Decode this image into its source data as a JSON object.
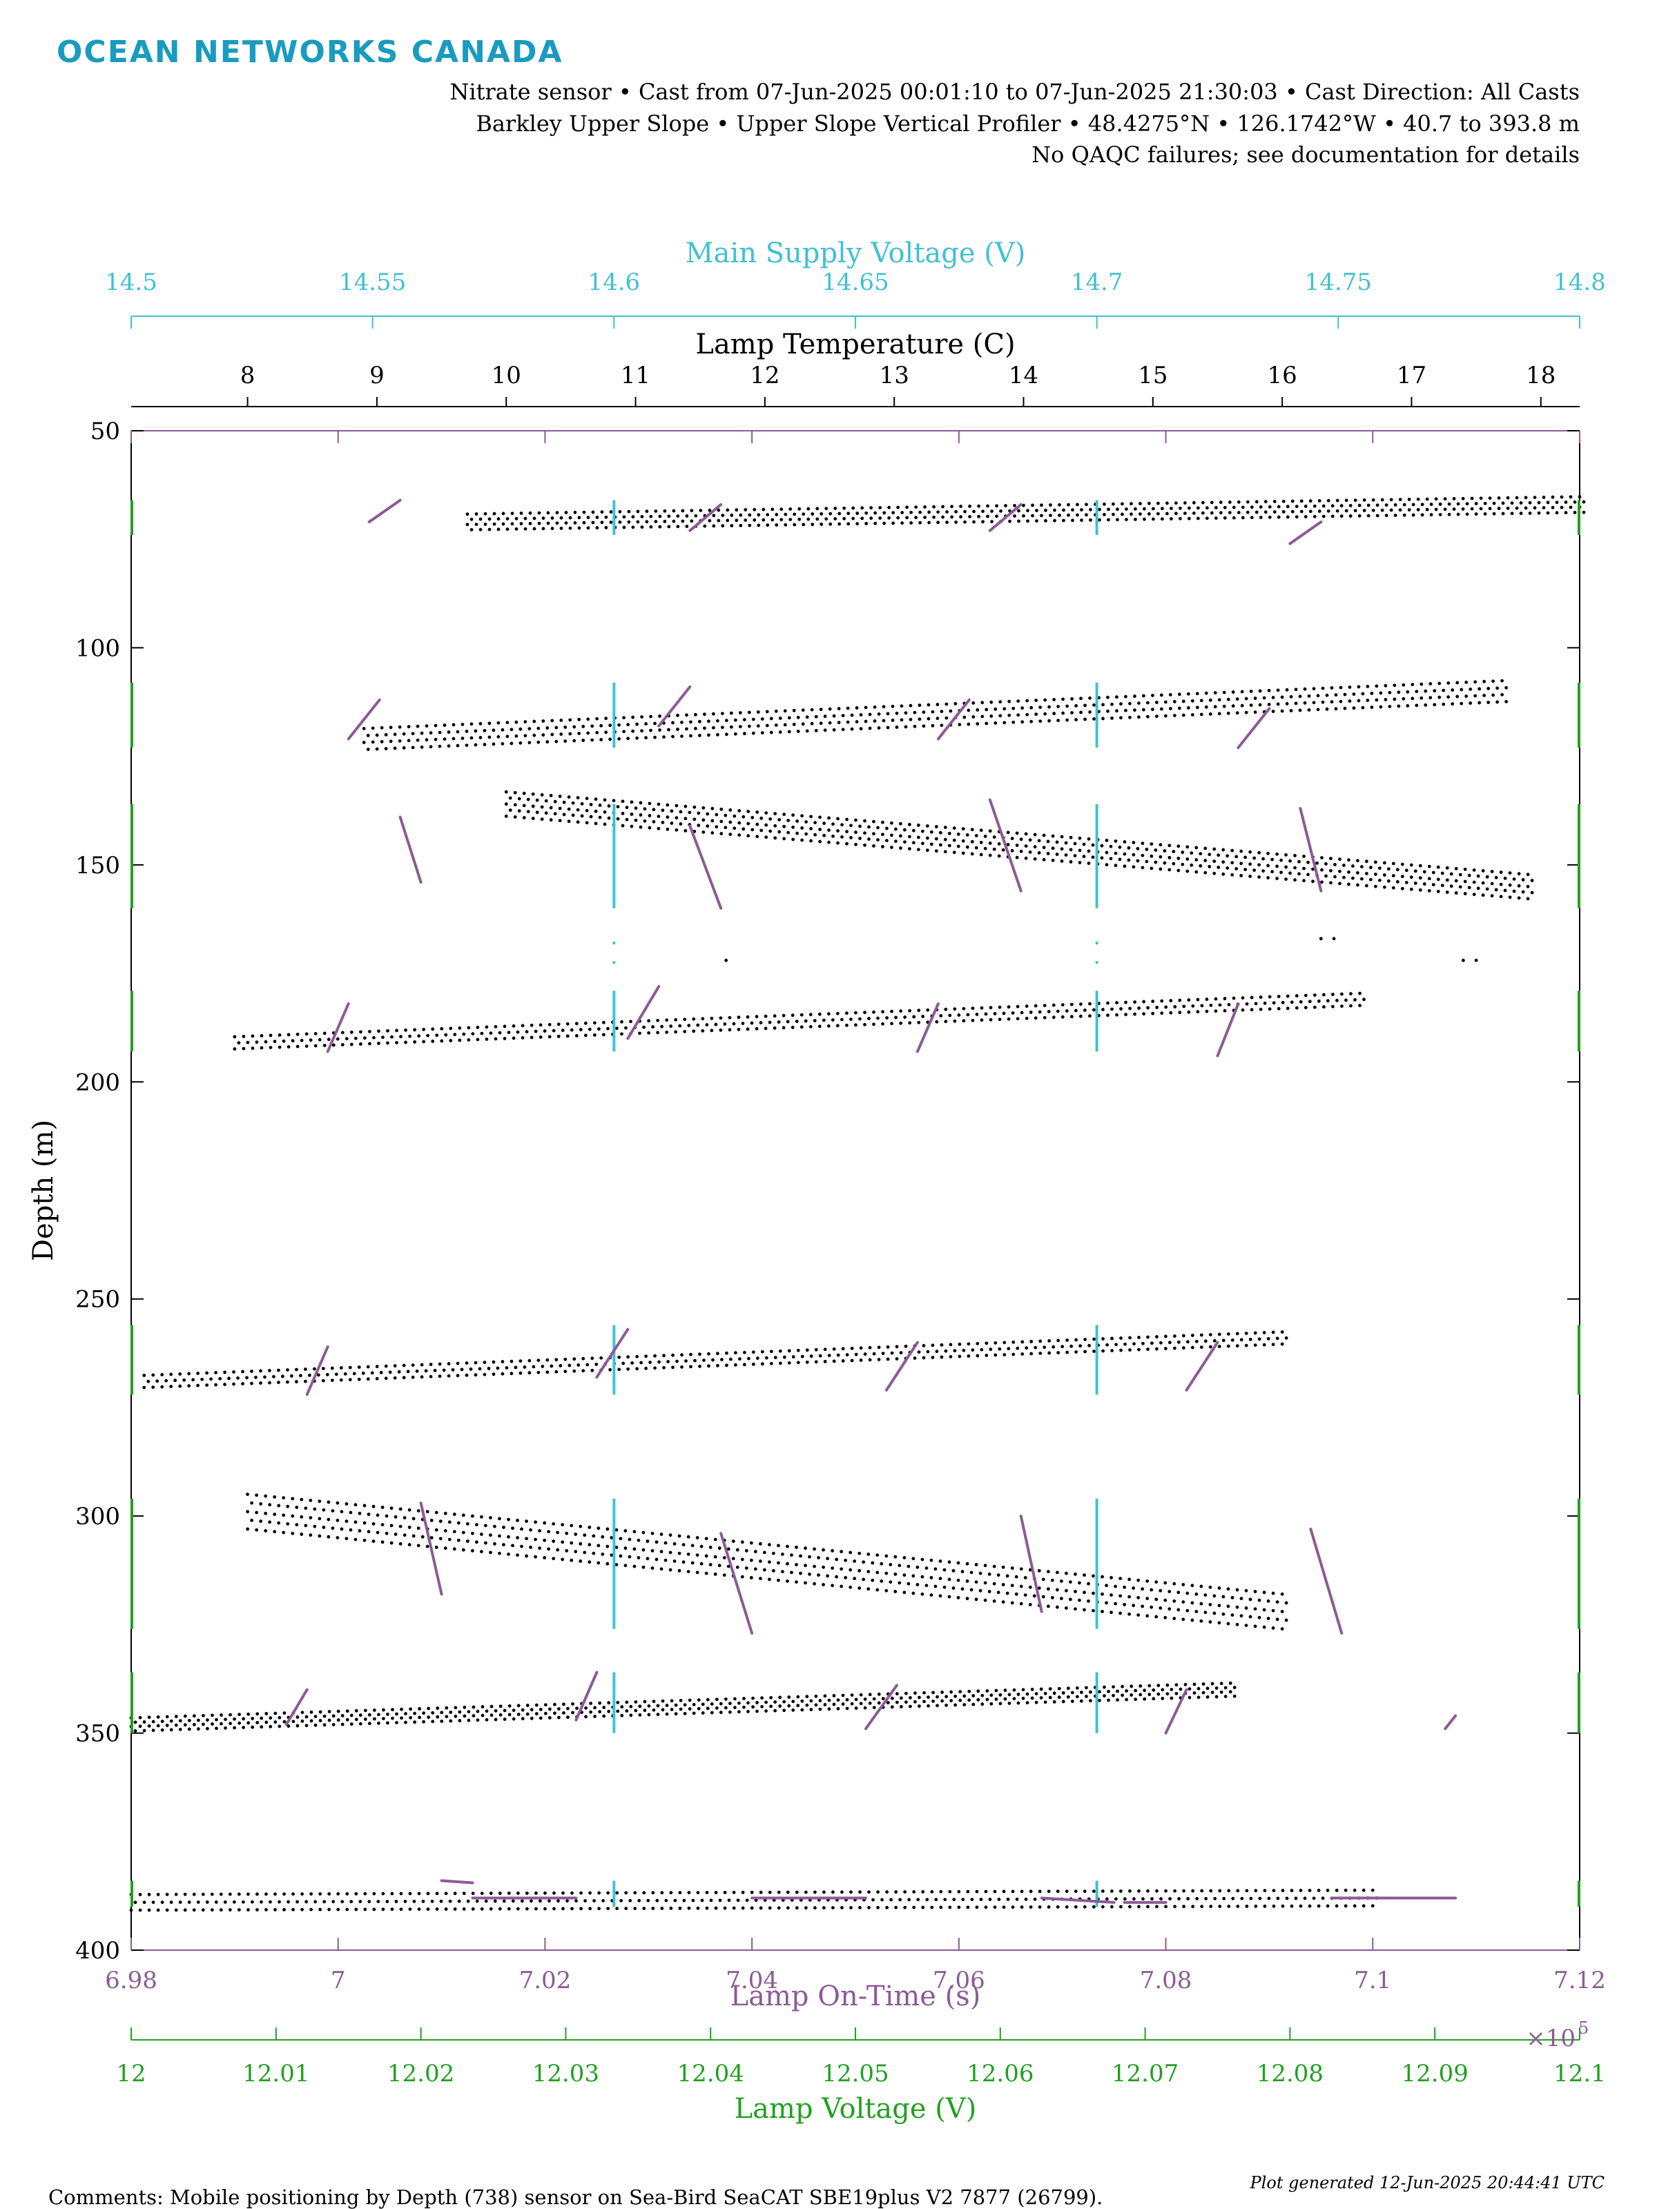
{
  "header": {
    "logo": "OCEAN NETWORKS CANADA",
    "line1": "Nitrate sensor • Cast from 07-Jun-2025 00:01:10 to 07-Jun-2025 21:30:03 • Cast Direction: All Casts",
    "line2": "Barkley Upper Slope • Upper Slope Vertical Profiler • 48.4275°N • 126.1742°W • 40.7 to 393.8 m",
    "line3": "No QAQC failures; see documentation for details"
  },
  "footer": {
    "comments": "Comments: Mobile positioning by Depth (738) sensor on Sea-Bird SeaCAT SBE19plus V2 7877 (26799).",
    "generated": "Plot generated 12-Jun-2025 20:44:41 UTC"
  },
  "colors": {
    "voltage_supply": "#3fc1d3",
    "lamp_time": "#8c5a96",
    "lamp_voltage": "#21a021",
    "temperature": "#000000"
  },
  "chart_data": {
    "type": "scatter",
    "y_axis": {
      "label": "Depth (m)",
      "range": [
        50,
        400
      ],
      "reversed": true,
      "ticks": [
        50,
        100,
        150,
        200,
        250,
        300,
        350,
        400
      ],
      "tick_labels": [
        "50",
        "100",
        "150",
        "200",
        "250",
        "300",
        "350",
        "400"
      ]
    },
    "x_axes": [
      {
        "id": "supply",
        "label": "Main Supply Voltage (V)",
        "position": "top-outer",
        "color": "#3fc1d3",
        "range": [
          14.5,
          14.8
        ],
        "ticks": [
          14.5,
          14.55,
          14.6,
          14.65,
          14.7,
          14.75,
          14.8
        ],
        "tick_labels": [
          "14.5",
          "14.55",
          "14.6",
          "14.65",
          "14.7",
          "14.75",
          "14.8"
        ]
      },
      {
        "id": "temp",
        "label": "Lamp Temperature (C)",
        "position": "top-inner",
        "color": "#000000",
        "range": [
          7.1,
          18.3
        ],
        "ticks": [
          8,
          9,
          10,
          11,
          12,
          13,
          14,
          15,
          16,
          17,
          18
        ],
        "tick_labels": [
          "8",
          "9",
          "10",
          "11",
          "12",
          "13",
          "14",
          "15",
          "16",
          "17",
          "18"
        ]
      },
      {
        "id": "ontime",
        "label": "Lamp On-Time (s)",
        "position": "bottom-inner",
        "color": "#8c5a96",
        "range": [
          6.98,
          7.12
        ],
        "multiplier": "×10",
        "multiplier_exp": "5",
        "ticks": [
          6.98,
          7.0,
          7.02,
          7.04,
          7.06,
          7.08,
          7.1,
          7.12
        ],
        "tick_labels": [
          "6.98",
          "7",
          "7.02",
          "7.04",
          "7.06",
          "7.08",
          "7.1",
          "7.12"
        ]
      },
      {
        "id": "lampv",
        "label": "Lamp Voltage (V)",
        "position": "bottom-outer",
        "color": "#21a021",
        "range": [
          12.0,
          12.1
        ],
        "ticks": [
          12.0,
          12.01,
          12.02,
          12.03,
          12.04,
          12.05,
          12.06,
          12.07,
          12.08,
          12.09,
          12.1
        ],
        "tick_labels": [
          "12",
          "12.01",
          "12.02",
          "12.03",
          "12.04",
          "12.05",
          "12.06",
          "12.07",
          "12.08",
          "12.09",
          "12.1"
        ]
      }
    ],
    "series": [
      {
        "id": "temperature",
        "axis": "temp",
        "style": "dots",
        "color": "#000000",
        "segments": [
          {
            "from": [
              9.7,
              71
            ],
            "to": [
              18.3,
              67
            ],
            "rows": 4,
            "spacing": 1.2
          },
          {
            "from": [
              8.9,
              121
            ],
            "to": [
              17.7,
              110
            ],
            "rows": 4,
            "spacing": 1.6
          },
          {
            "from": [
              10.0,
              136
            ],
            "to": [
              17.9,
              155
            ],
            "rows": 5,
            "spacing": 1.4
          },
          {
            "from": [
              7.9,
              191
            ],
            "to": [
              16.6,
              181
            ],
            "rows": 3,
            "spacing": 1.4
          },
          {
            "from": [
              7.2,
              269
            ],
            "to": [
              16.0,
              259
            ],
            "rows": 3,
            "spacing": 1.4
          },
          {
            "from": [
              8.0,
              299
            ],
            "to": [
              16.0,
              322
            ],
            "rows": 5,
            "spacing": 2.0
          },
          {
            "from": [
              7.1,
              348
            ],
            "to": [
              15.6,
              340
            ],
            "rows": 4,
            "spacing": 1.0
          },
          {
            "from": [
              7.1,
              389
            ],
            "to": [
              16.7,
              388
            ],
            "rows": 3,
            "spacing": 1.8
          }
        ]
      },
      {
        "id": "supply",
        "axis": "supply",
        "style": "vlines",
        "color": "#3fc1d3",
        "x_values": [
          14.6,
          14.7
        ],
        "bands": [
          [
            66,
            74
          ],
          [
            108,
            123
          ],
          [
            136,
            160
          ],
          [
            179,
            193
          ],
          [
            256,
            272
          ],
          [
            296,
            326
          ],
          [
            336,
            350
          ],
          [
            384,
            390
          ]
        ]
      },
      {
        "id": "lampv",
        "axis": "lampv",
        "style": "vlines",
        "color": "#21a021",
        "x_values": [
          12.0,
          12.1
        ],
        "bands": [
          [
            66,
            74
          ],
          [
            108,
            123
          ],
          [
            136,
            160
          ],
          [
            179,
            193
          ],
          [
            256,
            272
          ],
          [
            296,
            326
          ],
          [
            336,
            350
          ],
          [
            384,
            390
          ]
        ]
      },
      {
        "id": "ontime",
        "axis": "ontime",
        "style": "strokes",
        "color": "#8c5a96",
        "segments": [
          [
            [
              7.003,
              71
            ],
            [
              7.006,
              66
            ]
          ],
          [
            [
              7.034,
              73
            ],
            [
              7.037,
              67
            ]
          ],
          [
            [
              7.063,
              73
            ],
            [
              7.066,
              67
            ]
          ],
          [
            [
              7.092,
              76
            ],
            [
              7.095,
              71
            ]
          ],
          [
            [
              7.001,
              121
            ],
            [
              7.004,
              112
            ]
          ],
          [
            [
              7.031,
              118
            ],
            [
              7.034,
              109
            ]
          ],
          [
            [
              7.058,
              121
            ],
            [
              7.061,
              112
            ]
          ],
          [
            [
              7.087,
              123
            ],
            [
              7.09,
              114
            ]
          ],
          [
            [
              7.006,
              139
            ],
            [
              7.008,
              154
            ]
          ],
          [
            [
              7.034,
              141
            ],
            [
              7.037,
              160
            ]
          ],
          [
            [
              7.063,
              135
            ],
            [
              7.066,
              156
            ]
          ],
          [
            [
              7.093,
              137
            ],
            [
              7.095,
              156
            ]
          ],
          [
            [
              6.999,
              193
            ],
            [
              7.001,
              182
            ]
          ],
          [
            [
              7.028,
              190
            ],
            [
              7.031,
              178
            ]
          ],
          [
            [
              7.056,
              193
            ],
            [
              7.058,
              182
            ]
          ],
          [
            [
              7.085,
              194
            ],
            [
              7.087,
              182
            ]
          ],
          [
            [
              6.997,
              272
            ],
            [
              6.999,
              261
            ]
          ],
          [
            [
              7.025,
              268
            ],
            [
              7.028,
              257
            ]
          ],
          [
            [
              7.053,
              271
            ],
            [
              7.056,
              260
            ]
          ],
          [
            [
              7.082,
              271
            ],
            [
              7.085,
              260
            ]
          ],
          [
            [
              7.008,
              297
            ],
            [
              7.01,
              318
            ]
          ],
          [
            [
              7.037,
              304
            ],
            [
              7.04,
              327
            ]
          ],
          [
            [
              7.066,
              300
            ],
            [
              7.068,
              322
            ]
          ],
          [
            [
              7.094,
              303
            ],
            [
              7.097,
              327
            ]
          ],
          [
            [
              6.995,
              348
            ],
            [
              6.997,
              340
            ]
          ],
          [
            [
              7.023,
              347
            ],
            [
              7.025,
              336
            ]
          ],
          [
            [
              7.051,
              349
            ],
            [
              7.054,
              339
            ]
          ],
          [
            [
              7.08,
              350
            ],
            [
              7.082,
              340
            ]
          ],
          [
            [
              7.107,
              349
            ],
            [
              7.108,
              346
            ]
          ],
          [
            [
              7.01,
              384
            ],
            [
              7.013,
              384.5
            ]
          ],
          [
            [
              7.013,
              388
            ],
            [
              7.023,
              388
            ]
          ],
          [
            [
              7.04,
              388
            ],
            [
              7.051,
              388
            ]
          ],
          [
            [
              7.068,
              388
            ],
            [
              7.075,
              389
            ]
          ],
          [
            [
              7.076,
              389
            ],
            [
              7.08,
              389
            ]
          ],
          [
            [
              7.096,
              388
            ],
            [
              7.108,
              388
            ]
          ]
        ]
      }
    ],
    "scatter_specks": [
      [
        16.3,
        167
      ],
      [
        16.4,
        167
      ],
      [
        17.4,
        172
      ],
      [
        17.5,
        172
      ],
      [
        11.7,
        172
      ]
    ]
  }
}
